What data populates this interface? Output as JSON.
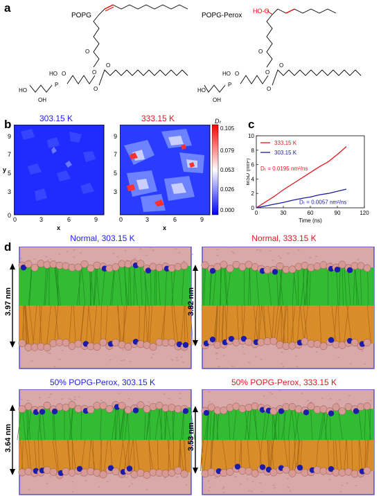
{
  "panel_a": {
    "letter": "a",
    "molecules": [
      {
        "name": "POPG",
        "atoms": {
          "oh1": "HO",
          "oh2": "OH",
          "ho": "HO",
          "p": "P",
          "o": "O"
        }
      },
      {
        "name": "POPG-Perox",
        "peroxide_label": "HO-O",
        "atoms": {
          "oh1": "HO",
          "oh2": "OH",
          "ho": "HO",
          "p": "P",
          "o": "O"
        }
      }
    ],
    "colors": {
      "double_bond": "#ff0000",
      "peroxide": "#ff0000"
    }
  },
  "panel_b": {
    "letter": "b",
    "maps": [
      {
        "title": "303.15 K",
        "title_color": "#1a1aff"
      },
      {
        "title": "333.15 K",
        "title_color": "#e8141e"
      }
    ],
    "x_label": "x",
    "y_label": "y",
    "x_ticks": [
      "0",
      "3",
      "6",
      "9"
    ],
    "y_ticks": [
      "0",
      "3",
      "5",
      "7",
      "9"
    ],
    "colorbar": {
      "label": "Dₜ",
      "ticks": [
        "0.105",
        "0.079",
        "0.053",
        "0.026",
        "0.000"
      ],
      "colors": [
        "#ff0000",
        "#ffffff",
        "#0000ff"
      ]
    }
  },
  "chart_data": {
    "type": "line",
    "panel_letter": "c",
    "title": "",
    "xlabel": "Time (ns)",
    "ylabel": "MSD (nm²)",
    "xlim": [
      0,
      120
    ],
    "ylim": [
      0,
      10
    ],
    "x_ticks": [
      "0",
      "30",
      "60",
      "90",
      "120"
    ],
    "y_ticks": [
      "0",
      "2",
      "4",
      "6",
      "8",
      "10"
    ],
    "legend_position": "top-left",
    "series": [
      {
        "name": "333.15 K",
        "color": "#e8141e",
        "x": [
          0,
          10,
          20,
          30,
          40,
          50,
          60,
          70,
          80,
          90,
          100
        ],
        "y": [
          0.0,
          0.8,
          1.6,
          2.5,
          3.3,
          4.1,
          4.9,
          5.7,
          6.4,
          7.4,
          8.5
        ]
      },
      {
        "name": "303.15 K",
        "color": "#1a1aaa",
        "x": [
          0,
          10,
          20,
          30,
          40,
          50,
          60,
          70,
          80,
          90,
          100
        ],
        "y": [
          0.0,
          0.25,
          0.5,
          0.75,
          1.05,
          1.3,
          1.5,
          1.8,
          2.0,
          2.3,
          2.6
        ]
      }
    ],
    "annotations": [
      {
        "text": "Dₜ = 0.0195 nm²/ns",
        "color": "#e8141e"
      },
      {
        "text": "Dₜ = 0.0057 nm²/ns",
        "color": "#1a1aaa"
      }
    ]
  },
  "panel_d": {
    "letter": "d",
    "systems": [
      {
        "title": "Normal, 303.15 K",
        "title_color": "#1a1aff",
        "thickness": "3.97 nm"
      },
      {
        "title": "Normal, 333.15 K",
        "title_color": "#e8141e",
        "thickness": "3.82 nm"
      },
      {
        "title": "50% POPG-Perox, 303.15 K",
        "title_color": "#1a1aff",
        "thickness": "3.64 nm"
      },
      {
        "title": "50% POPG-Perox, 333.15 K",
        "title_color": "#e8141e",
        "thickness": "3.53 nm"
      }
    ],
    "colors": {
      "water": "#d9a8a8",
      "tails_upper": "#33bb33",
      "tails_lower": "#d98c2a",
      "headgroup": "#d99a95",
      "phosphate": "#1c1caa",
      "frame": "#3333cc"
    }
  }
}
